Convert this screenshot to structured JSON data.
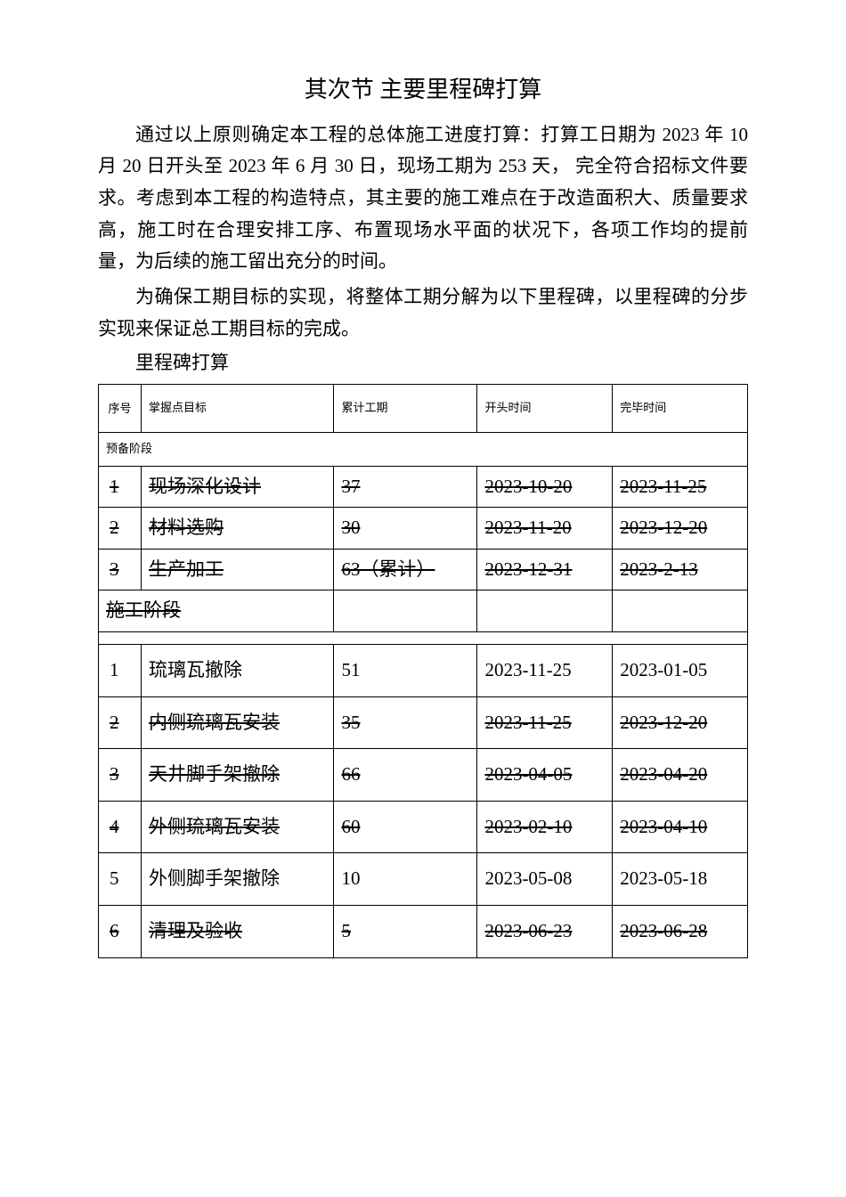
{
  "title": "其次节 主要里程碑打算",
  "para1": "通过以上原则确定本工程的总体施工进度打算：打算工日期为 2023 年 10 月 20 日开头至 2023 年 6 月 30 日，现场工期为 253 天， 完全符合招标文件要求。考虑到本工程的构造特点，其主要的施工难点在于改造面积大、质量要求高，施工时在合理安排工序、布置现场水平面的状况下，各项工作均的提前量，为后续的施工留出充分的时间。",
  "para2": "为确保工期目标的实现，将整体工期分解为以下里程碑，以里程碑的分步实现来保证总工期目标的完成。",
  "caption": "里程碑打算",
  "headers": {
    "seq": "序号",
    "target": "掌握点目标",
    "duration": "累计工期",
    "start": "开头时间",
    "end": "完毕时间"
  },
  "section1": "预备阶段",
  "prep_rows": [
    {
      "seq": "1",
      "target": "现场深化设计",
      "duration": "37",
      "start": "2023-10-20",
      "end": "2023-11-25",
      "strike": true
    },
    {
      "seq": "2",
      "target": "材料选购",
      "duration": "30",
      "start": "2023-11-20",
      "end": "2023-12-20",
      "strike": true
    },
    {
      "seq": "3",
      "target": "生产加工",
      "duration": "63（累计）",
      "start": "2023-12-31",
      "end": "2023-2-13",
      "strike": true
    }
  ],
  "section2": "施工阶段",
  "cons_rows": [
    {
      "seq": "1",
      "target": "琉璃瓦撤除",
      "duration": "51",
      "start": "2023-11-25",
      "end": "2023-01-05",
      "strike": false
    },
    {
      "seq": "2",
      "target": "内侧琉璃瓦安装",
      "duration": "35",
      "start": "2023-11-25",
      "end": "2023-12-20",
      "strike": true
    },
    {
      "seq": "3",
      "target": "天井脚手架撤除",
      "duration": "66",
      "start": "2023-04-05",
      "end": "2023-04-20",
      "strike": true
    },
    {
      "seq": "4",
      "target": "外侧琉璃瓦安装",
      "duration": "60",
      "start": "2023-02-10",
      "end": "2023-04-10",
      "strike": true
    },
    {
      "seq": "5",
      "target": "外侧脚手架撤除",
      "duration": "10",
      "start": "2023-05-08",
      "end": "2023-05-18",
      "strike": false
    },
    {
      "seq": "6",
      "target": "清理及验收",
      "duration": "5",
      "start": "2023-06-23",
      "end": "2023-06-28",
      "strike": true
    }
  ]
}
